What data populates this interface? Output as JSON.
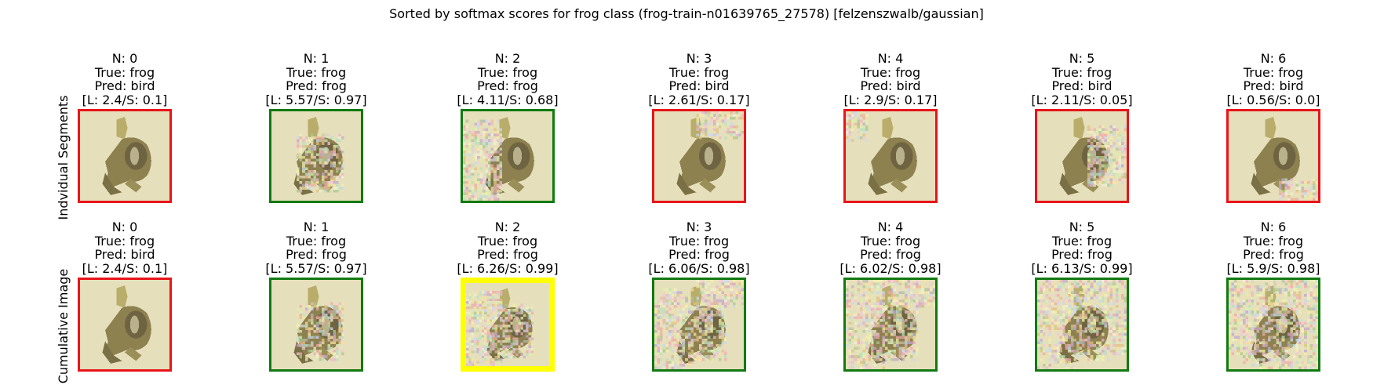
{
  "figure": {
    "title": "Sorted by softmax scores for frog class (frog-train-n01639765_27578) [felzenszwalb/gaussian]",
    "row_labels": [
      "Indvidual Segments",
      "Cumulative Image"
    ]
  },
  "colors": {
    "pred_correct": "#117a11",
    "pred_wrong": "#e8151a",
    "highlight": "#ffff00",
    "background": "#e6dfbb"
  },
  "rows": [
    {
      "panels": [
        {
          "n": "N: 0",
          "true": "True: frog",
          "pred": "Pred: bird",
          "score": "[L: 2.4/S: 0.1]",
          "border": "wrong",
          "noise": "none"
        },
        {
          "n": "N: 1",
          "true": "True: frog",
          "pred": "Pred: frog",
          "score": "[L: 5.57/S: 0.97]",
          "border": "correct",
          "noise": "body"
        },
        {
          "n": "N: 2",
          "true": "True: frog",
          "pred": "Pred: frog",
          "score": "[L: 4.11/S: 0.68]",
          "border": "correct",
          "noise": "left"
        },
        {
          "n": "N: 3",
          "true": "True: frog",
          "pred": "Pred: bird",
          "score": "[L: 2.61/S: 0.17]",
          "border": "wrong",
          "noise": "topright"
        },
        {
          "n": "N: 4",
          "true": "True: frog",
          "pred": "Pred: bird",
          "score": "[L: 2.9/S: 0.17]",
          "border": "wrong",
          "noise": "topleft"
        },
        {
          "n": "N: 5",
          "true": "True: frog",
          "pred": "Pred: bird",
          "score": "[L: 2.11/S: 0.05]",
          "border": "wrong",
          "noise": "right"
        },
        {
          "n": "N: 6",
          "true": "True: frog",
          "pred": "Pred: bird",
          "score": "[L: 0.56/S: 0.0]",
          "border": "wrong",
          "noise": "bottomright"
        }
      ]
    },
    {
      "panels": [
        {
          "n": "N: 0",
          "true": "True: frog",
          "pred": "Pred: bird",
          "score": "[L: 2.4/S: 0.1]",
          "border": "wrong",
          "noise": "none"
        },
        {
          "n": "N: 1",
          "true": "True: frog",
          "pred": "Pred: frog",
          "score": "[L: 5.57/S: 0.97]",
          "border": "correct",
          "noise": "body"
        },
        {
          "n": "N: 2",
          "true": "True: frog",
          "pred": "Pred: frog",
          "score": "[L: 6.26/S: 0.99]",
          "border": "highlight",
          "noise": "cum2"
        },
        {
          "n": "N: 3",
          "true": "True: frog",
          "pred": "Pred: frog",
          "score": "[L: 6.06/S: 0.98]",
          "border": "correct",
          "noise": "cum3"
        },
        {
          "n": "N: 4",
          "true": "True: frog",
          "pred": "Pred: frog",
          "score": "[L: 6.02/S: 0.98]",
          "border": "correct",
          "noise": "cum4"
        },
        {
          "n": "N: 5",
          "true": "True: frog",
          "pred": "Pred: frog",
          "score": "[L: 6.13/S: 0.99]",
          "border": "correct",
          "noise": "cum5"
        },
        {
          "n": "N: 6",
          "true": "True: frog",
          "pred": "Pred: frog",
          "score": "[L: 5.9/S: 0.98]",
          "border": "correct",
          "noise": "cum6"
        }
      ]
    }
  ]
}
